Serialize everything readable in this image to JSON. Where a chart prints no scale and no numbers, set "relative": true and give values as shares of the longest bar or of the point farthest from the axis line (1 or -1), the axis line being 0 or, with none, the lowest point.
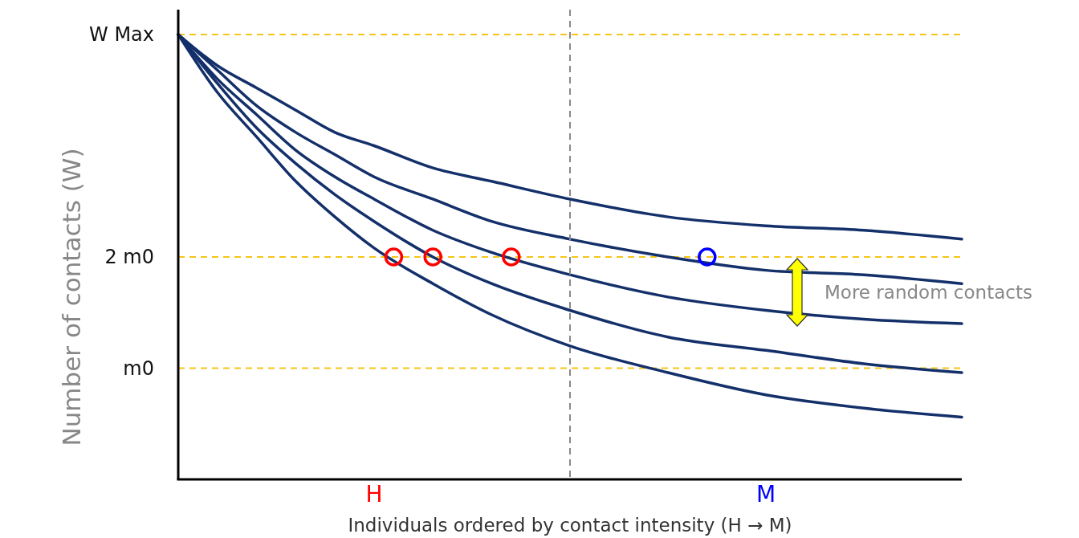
{
  "chart_data": {
    "type": "line",
    "relative": true,
    "xlabel": "Individuals ordered by contact intensity (H → M)",
    "ylabel": "Number of contacts (W)",
    "categories": [
      null,
      null,
      null,
      null,
      null,
      null,
      null,
      null,
      null,
      null,
      "H",
      null,
      null,
      null,
      null,
      null,
      null,
      null,
      null,
      null,
      null,
      null,
      null,
      null,
      null,
      null,
      null,
      null,
      null,
      null,
      "M",
      null,
      null,
      null,
      null,
      null,
      null,
      null,
      null,
      null,
      null
    ],
    "series": [
      {
        "color": "#14306a",
        "values": [
          1,
          null,
          0.93,
          null,
          0.88,
          null,
          0.83,
          null,
          0.78,
          null,
          0.75,
          null,
          null,
          0.7,
          null,
          null,
          0.67,
          null,
          null,
          null,
          0.63,
          null,
          null,
          null,
          null,
          0.59,
          null,
          null,
          null,
          null,
          0.57,
          null,
          null,
          null,
          null,
          0.56,
          null,
          null,
          null,
          null,
          0.54
        ]
      },
      {
        "color": "#14306a",
        "values": [
          1,
          null,
          0.92,
          null,
          0.84,
          null,
          0.78,
          null,
          0.73,
          null,
          0.68,
          null,
          null,
          0.63,
          null,
          null,
          0.58,
          null,
          null,
          null,
          0.54,
          null,
          null,
          null,
          null,
          0.5,
          null,
          null,
          null,
          null,
          0.47,
          null,
          null,
          null,
          null,
          0.46,
          null,
          null,
          null,
          null,
          0.44
        ]
      },
      {
        "color": "#14306a",
        "values": [
          1,
          null,
          0.9,
          null,
          0.82,
          null,
          0.74,
          null,
          0.68,
          null,
          0.63,
          null,
          null,
          0.56,
          null,
          null,
          0.51,
          null,
          null,
          null,
          0.46,
          null,
          null,
          null,
          null,
          0.41,
          null,
          null,
          null,
          null,
          0.38,
          null,
          null,
          null,
          null,
          0.36,
          null,
          null,
          null,
          null,
          0.35
        ]
      },
      {
        "color": "#14306a",
        "values": [
          1,
          null,
          0.89,
          null,
          0.79,
          null,
          0.71,
          null,
          0.64,
          null,
          0.58,
          null,
          null,
          0.5,
          null,
          null,
          0.44,
          null,
          null,
          null,
          0.38,
          null,
          null,
          null,
          null,
          0.32,
          null,
          null,
          null,
          null,
          0.29,
          null,
          null,
          null,
          null,
          0.26,
          null,
          null,
          null,
          null,
          0.24
        ]
      },
      {
        "color": "#14306a",
        "values": [
          1,
          null,
          0.87,
          null,
          0.77,
          null,
          0.67,
          null,
          0.59,
          null,
          0.52,
          null,
          null,
          0.44,
          null,
          null,
          0.37,
          null,
          null,
          null,
          0.3,
          null,
          null,
          null,
          null,
          0.24,
          null,
          null,
          null,
          null,
          0.19,
          null,
          null,
          null,
          null,
          0.16,
          null,
          null,
          null,
          null,
          0.14
        ]
      },
      {
        "type": "scatter",
        "marker": "circle",
        "color": "#ff0000",
        "values": [
          null,
          null,
          null,
          null,
          null,
          null,
          null,
          null,
          null,
          null,
          null,
          0.5,
          null,
          0.5,
          null,
          null,
          null,
          0.5,
          null,
          null,
          null,
          null,
          null,
          null,
          null,
          null,
          null,
          null,
          null,
          null,
          null,
          null,
          null,
          null,
          null,
          null,
          null,
          null,
          null,
          null,
          null
        ]
      },
      {
        "type": "scatter",
        "marker": "circle",
        "color": "#0000ff",
        "values": [
          null,
          null,
          null,
          null,
          null,
          null,
          null,
          null,
          null,
          null,
          null,
          null,
          null,
          null,
          null,
          null,
          null,
          null,
          null,
          null,
          null,
          null,
          null,
          null,
          null,
          null,
          null,
          0.5,
          null,
          null,
          null,
          null,
          null,
          null,
          null,
          null,
          null,
          null,
          null,
          null,
          null
        ]
      }
    ],
    "line_style": "solid",
    "ref_lines": [
      {
        "axis": "y",
        "value": 1,
        "label": "W Max",
        "color": "#f5c518",
        "line_style": "dashed"
      },
      {
        "axis": "y",
        "value": 0.5,
        "label": "2 m0",
        "color": "#f5c518",
        "line_style": "dashed"
      },
      {
        "axis": "y",
        "value": 0.25,
        "label": "m0",
        "color": "#f5c518",
        "line_style": "dashed"
      }
    ],
    "annotations": [
      "More random contacts"
    ]
  }
}
